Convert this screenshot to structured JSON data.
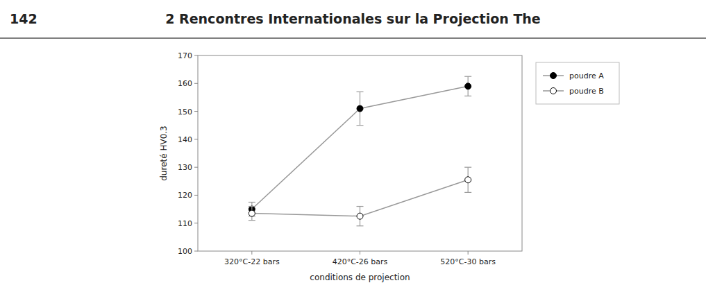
{
  "chart_data": {
    "type": "line",
    "title": "2 Rencontres Internationales sur la Projection The",
    "annotations": [
      "142"
    ],
    "x_label": "conditions de projection",
    "y_label": "dureté HV0.3",
    "categories": [
      "320°C-22 bars",
      "420°C-26 bars",
      "520°C-30 bars"
    ],
    "series": [
      {
        "name": "poudre A",
        "values": [
          115,
          151,
          159
        ],
        "errors": [
          2.5,
          6,
          3.5
        ],
        "color": "black",
        "marker": "circle"
      },
      {
        "name": "poudre B",
        "values": [
          113.5,
          112.5,
          125.5
        ],
        "errors": [
          2.5,
          3.5,
          4.5
        ],
        "color": "white",
        "marker": "circle"
      }
    ],
    "color": "#999999",
    "ylim": [
      100,
      170
    ],
    "yticks": [
      100,
      110,
      120,
      130,
      140,
      150,
      160,
      170
    ],
    "grid": false,
    "legend": "right"
  }
}
